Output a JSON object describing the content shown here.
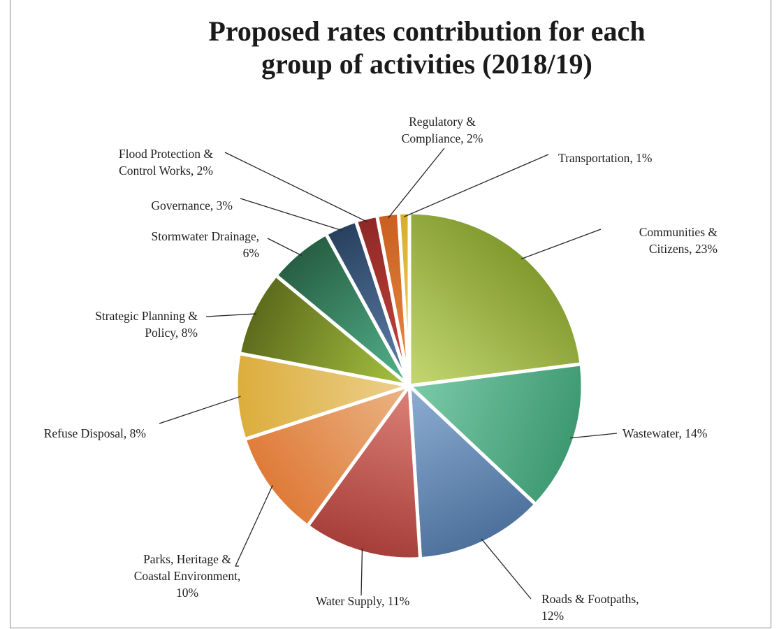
{
  "chart_data": {
    "type": "pie",
    "title": [
      "Proposed rates contribution for each",
      "group of activities (2018/19)"
    ],
    "slices": [
      {
        "name": "Communities & Citizens",
        "value": 23,
        "label_lines": [
          "Communities &",
          "Citizens, 23%"
        ],
        "color_light": "#c4d872",
        "color_dark": "#82992e"
      },
      {
        "name": "Wastewater",
        "value": 14,
        "label_lines": [
          "Wastewater, 14%"
        ],
        "color_light": "#7ccbaa",
        "color_dark": "#3d9870"
      },
      {
        "name": "Roads & Footpaths",
        "value": 12,
        "label_lines": [
          "Roads & Footpaths,",
          "12%"
        ],
        "color_light": "#8eaed3",
        "color_dark": "#4c709b"
      },
      {
        "name": "Water Supply",
        "value": 11,
        "label_lines": [
          "Water Supply, 11%"
        ],
        "color_light": "#dd8278",
        "color_dark": "#a53d38"
      },
      {
        "name": "Parks, Heritage & Coastal Environment",
        "value": 10,
        "label_lines": [
          "Parks, Heritage &",
          "Coastal Environment,",
          "10%"
        ],
        "color_light": "#eab585",
        "color_dark": "#df7a38"
      },
      {
        "name": "Refuse Disposal",
        "value": 8,
        "label_lines": [
          "Refuse Disposal, 8%"
        ],
        "color_light": "#ecd08e",
        "color_dark": "#dcad3b"
      },
      {
        "name": "Strategic Planning & Policy",
        "value": 8,
        "label_lines": [
          "Strategic Planning &",
          "Policy, 8%"
        ],
        "color_light": "#a8c441",
        "color_dark": "#5c6a1b"
      },
      {
        "name": "Stormwater Drainage",
        "value": 6,
        "label_lines": [
          "Stormwater Drainage,",
          "6%"
        ],
        "color_light": "#54b48e",
        "color_dark": "#275e42"
      },
      {
        "name": "Governance",
        "value": 3,
        "label_lines": [
          "Governance, 3%"
        ],
        "color_light": "#5f82ae",
        "color_dark": "#28405e"
      },
      {
        "name": "Flood Protection & Control Works",
        "value": 2,
        "label_lines": [
          "Flood Protection &",
          "Control Works, 2%"
        ],
        "color_light": "#c8463e",
        "color_dark": "#8e2826"
      },
      {
        "name": "Regulatory & Compliance",
        "value": 2,
        "label_lines": [
          "Regulatory &",
          "Compliance, 2%"
        ],
        "color_light": "#ea8d44",
        "color_dark": "#c95e20"
      },
      {
        "name": "Transportation",
        "value": 1,
        "label_lines": [
          "Transportation, 1%"
        ],
        "color_light": "#f0d46a",
        "color_dark": "#d6ac2c"
      }
    ]
  }
}
